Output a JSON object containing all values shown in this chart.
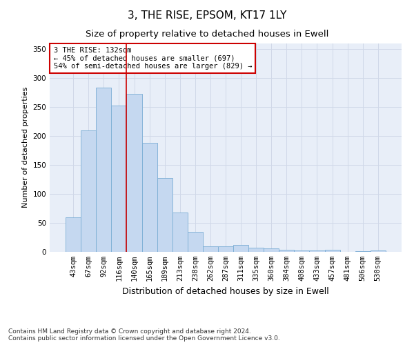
{
  "title": "3, THE RISE, EPSOM, KT17 1LY",
  "subtitle": "Size of property relative to detached houses in Ewell",
  "xlabel": "Distribution of detached houses by size in Ewell",
  "ylabel": "Number of detached properties",
  "categories": [
    "43sqm",
    "67sqm",
    "92sqm",
    "116sqm",
    "140sqm",
    "165sqm",
    "189sqm",
    "213sqm",
    "238sqm",
    "262sqm",
    "287sqm",
    "311sqm",
    "335sqm",
    "360sqm",
    "384sqm",
    "408sqm",
    "433sqm",
    "457sqm",
    "481sqm",
    "506sqm",
    "530sqm"
  ],
  "values": [
    60,
    210,
    283,
    252,
    272,
    188,
    127,
    68,
    34,
    9,
    9,
    12,
    7,
    6,
    4,
    2,
    2,
    3,
    0,
    1,
    2
  ],
  "bar_color": "#c5d8f0",
  "bar_edge_color": "#7aadd4",
  "grid_color": "#d0d8e8",
  "background_color": "#e8eef8",
  "vline_x_idx": 4,
  "vline_color": "#cc0000",
  "annotation_text": "3 THE RISE: 132sqm\n← 45% of detached houses are smaller (697)\n54% of semi-detached houses are larger (829) →",
  "annotation_box_color": "#ffffff",
  "annotation_box_edge": "#cc0000",
  "footer": "Contains HM Land Registry data © Crown copyright and database right 2024.\nContains public sector information licensed under the Open Government Licence v3.0.",
  "ylim": [
    0,
    360
  ],
  "yticks": [
    0,
    50,
    100,
    150,
    200,
    250,
    300,
    350
  ],
  "title_fontsize": 11,
  "subtitle_fontsize": 9.5,
  "xlabel_fontsize": 9,
  "ylabel_fontsize": 8,
  "tick_fontsize": 7.5,
  "annot_fontsize": 7.5,
  "footer_fontsize": 6.5
}
